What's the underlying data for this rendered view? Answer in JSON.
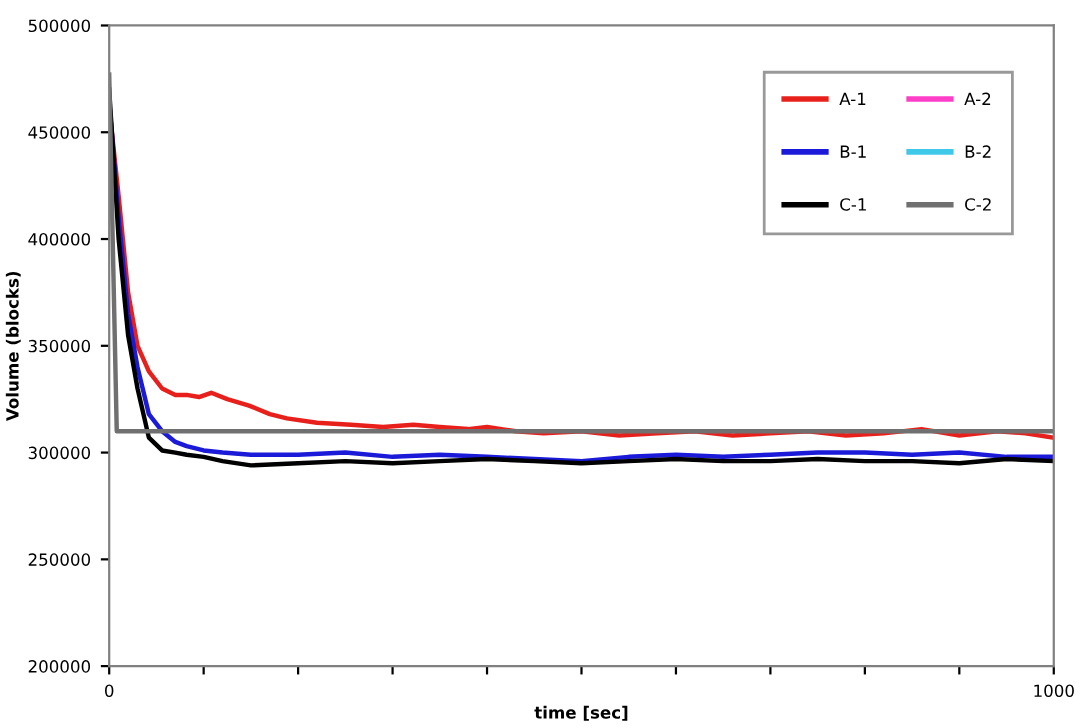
{
  "chart_data": {
    "type": "line",
    "xlabel": "time [sec]",
    "ylabel": "Volume (blocks)",
    "xlim": [
      0,
      1000
    ],
    "ylim": [
      200000,
      500000
    ],
    "xticks": [
      0,
      {
        "value": 100,
        "label": null
      },
      {
        "value": 200,
        "label": null
      },
      {
        "value": 300,
        "label": null
      },
      {
        "value": 400,
        "label": null
      },
      {
        "value": 500,
        "label": null
      },
      {
        "value": 600,
        "label": null
      },
      {
        "value": 700,
        "label": null
      },
      {
        "value": 800,
        "label": null
      },
      {
        "value": 900,
        "label": null
      },
      1000
    ],
    "yticks": [
      200000,
      250000,
      300000,
      350000,
      400000,
      450000,
      500000
    ],
    "grid": false,
    "legend": "top right",
    "marker": "none",
    "line_style": "solid",
    "series": [
      {
        "name": "A-1",
        "color": "#e8201c",
        "x": [
          0,
          10,
          20,
          30,
          42,
          56,
          70,
          82,
          95,
          108,
          125,
          148,
          170,
          188,
          220,
          256,
          290,
          322,
          350,
          380,
          400,
          430,
          460,
          500,
          540,
          580,
          620,
          660,
          700,
          740,
          780,
          820,
          860,
          900,
          940,
          970,
          1000
        ],
        "values": [
          462000,
          420000,
          375000,
          350000,
          338000,
          330000,
          327000,
          327000,
          326000,
          328000,
          325000,
          322000,
          318000,
          316000,
          314000,
          313000,
          312000,
          313000,
          312000,
          311000,
          312000,
          310000,
          309000,
          310000,
          308000,
          309000,
          310000,
          308000,
          309000,
          310000,
          308000,
          309000,
          311000,
          308000,
          310000,
          309000,
          307000
        ]
      },
      {
        "name": "B-1",
        "color": "#1a1ad8",
        "x": [
          0,
          10,
          20,
          30,
          42,
          56,
          70,
          82,
          100,
          120,
          150,
          200,
          250,
          300,
          350,
          400,
          450,
          500,
          550,
          600,
          650,
          700,
          750,
          800,
          850,
          900,
          950,
          1000
        ],
        "values": [
          465000,
          410000,
          365000,
          340000,
          318000,
          310000,
          305000,
          303000,
          301000,
          300000,
          299000,
          299000,
          300000,
          298000,
          299000,
          298000,
          297000,
          296000,
          298000,
          299000,
          298000,
          299000,
          300000,
          300000,
          299000,
          300000,
          298000,
          298000
        ]
      },
      {
        "name": "C-1",
        "color": "#000000",
        "x": [
          0,
          10,
          20,
          30,
          42,
          56,
          70,
          82,
          100,
          120,
          150,
          200,
          250,
          300,
          350,
          400,
          450,
          500,
          550,
          600,
          650,
          700,
          750,
          800,
          850,
          900,
          950,
          1000
        ],
        "values": [
          470000,
          400000,
          355000,
          330000,
          307000,
          301000,
          300000,
          299000,
          298000,
          296000,
          294000,
          295000,
          296000,
          295000,
          296000,
          297000,
          296000,
          295000,
          296000,
          297000,
          296000,
          296000,
          297000,
          296000,
          296000,
          295000,
          297000,
          296000
        ]
      },
      {
        "name": "A-2",
        "color": "#ff3ec8"
      },
      {
        "name": "B-2",
        "color": "#3fc8e8"
      },
      {
        "name": "C-2",
        "color": "#707070",
        "x": [
          0,
          8,
          1000
        ],
        "values": [
          477000,
          310000,
          310000
        ]
      }
    ]
  }
}
